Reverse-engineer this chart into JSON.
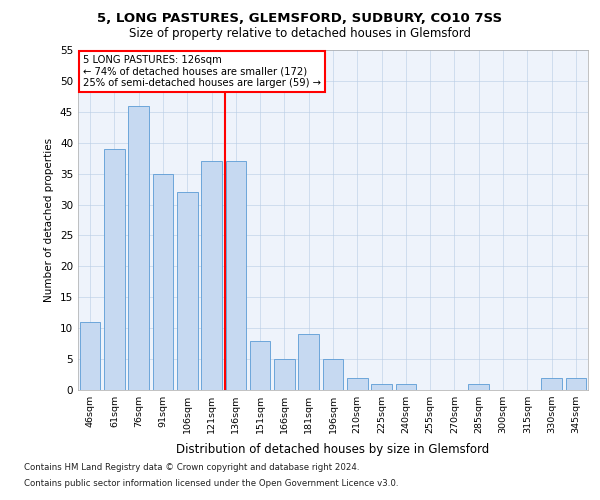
{
  "title1": "5, LONG PASTURES, GLEMSFORD, SUDBURY, CO10 7SS",
  "title2": "Size of property relative to detached houses in Glemsford",
  "xlabel": "Distribution of detached houses by size in Glemsford",
  "ylabel": "Number of detached properties",
  "bins": [
    "46sqm",
    "61sqm",
    "76sqm",
    "91sqm",
    "106sqm",
    "121sqm",
    "136sqm",
    "151sqm",
    "166sqm",
    "181sqm",
    "196sqm",
    "210sqm",
    "225sqm",
    "240sqm",
    "255sqm",
    "270sqm",
    "285sqm",
    "300sqm",
    "315sqm",
    "330sqm",
    "345sqm"
  ],
  "values": [
    11,
    39,
    46,
    35,
    32,
    37,
    37,
    8,
    5,
    9,
    5,
    2,
    1,
    1,
    0,
    0,
    1,
    0,
    0,
    2,
    2
  ],
  "bar_color": "#c6d9f1",
  "bar_edge_color": "#5b9bd5",
  "red_line_x": 5.55,
  "annotation_line1": "5 LONG PASTURES: 126sqm",
  "annotation_line2": "← 74% of detached houses are smaller (172)",
  "annotation_line3": "25% of semi-detached houses are larger (59) →",
  "footer1": "Contains HM Land Registry data © Crown copyright and database right 2024.",
  "footer2": "Contains public sector information licensed under the Open Government Licence v3.0.",
  "ylim": [
    0,
    55
  ],
  "yticks": [
    0,
    5,
    10,
    15,
    20,
    25,
    30,
    35,
    40,
    45,
    50,
    55
  ],
  "grid_color": "#b8cce4",
  "plot_bg_color": "#eef3fb"
}
